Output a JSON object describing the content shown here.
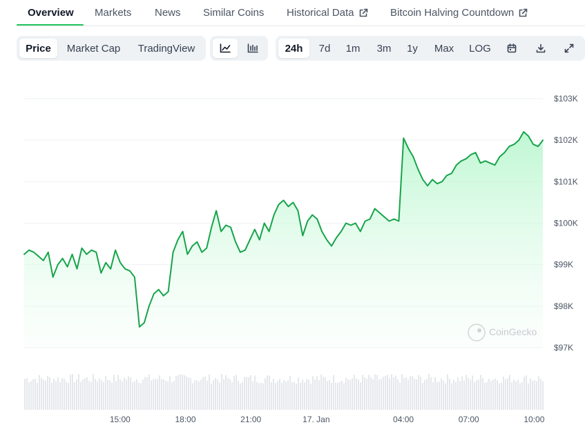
{
  "tabs": [
    {
      "label": "Overview",
      "active": true
    },
    {
      "label": "Markets"
    },
    {
      "label": "News"
    },
    {
      "label": "Similar Coins"
    },
    {
      "label": "Historical Data",
      "external": true
    },
    {
      "label": "Bitcoin Halving Countdown",
      "external": true
    }
  ],
  "toolbar": {
    "chart_type": [
      "Price",
      "Market Cap",
      "TradingView"
    ],
    "chart_type_selected": "Price",
    "view_icons": [
      "line-chart-icon",
      "candlestick-chart-icon"
    ],
    "ranges": [
      "24h",
      "7d",
      "1m",
      "3m",
      "1y",
      "Max",
      "LOG"
    ],
    "range_selected": "24h",
    "action_icons": [
      "calendar-icon",
      "download-icon",
      "fullscreen-icon"
    ]
  },
  "watermark": "CoinGecko",
  "colors": {
    "line": "#16a34a",
    "fill_top": "#bbf7d0",
    "volume": "#e5e7eb",
    "accent": "#22c55e"
  },
  "chart_data": {
    "type": "area",
    "y_ticks": [
      "$103K",
      "$102K",
      "$101K",
      "$100K",
      "$99K",
      "$98K",
      "$97K"
    ],
    "ylim": [
      96900,
      103100
    ],
    "x_ticks": [
      "15:00",
      "18:00",
      "21:00",
      "17. Jan",
      "04:00",
      "07:00",
      "10:00"
    ],
    "x_tick_hours": [
      15,
      18,
      21,
      24,
      28,
      31,
      34
    ],
    "x_start_hour": 10.6,
    "x_end_hour": 34.4,
    "price": [
      99250,
      99350,
      99300,
      99200,
      99100,
      99300,
      98700,
      99000,
      99150,
      98950,
      99250,
      98900,
      99400,
      99250,
      99350,
      99300,
      98800,
      99050,
      98900,
      99350,
      99050,
      98900,
      98850,
      98700,
      97500,
      97600,
      98000,
      98300,
      98400,
      98250,
      98350,
      99300,
      99600,
      99800,
      99250,
      99450,
      99550,
      99300,
      99400,
      99900,
      100300,
      99800,
      99950,
      99900,
      99550,
      99300,
      99350,
      99600,
      99850,
      99600,
      100000,
      99800,
      100200,
      100450,
      100550,
      100400,
      100500,
      100300,
      99700,
      100050,
      100200,
      100100,
      99800,
      99600,
      99450,
      99650,
      99800,
      100000,
      99950,
      100000,
      99800,
      100050,
      100100,
      100350,
      100250,
      100150,
      100050,
      100100,
      100050,
      102050,
      101800,
      101600,
      101300,
      101050,
      100900,
      101050,
      100950,
      101000,
      101150,
      101200,
      101400,
      101500,
      101550,
      101650,
      101700,
      101450,
      101500,
      101450,
      101400,
      101600,
      101700,
      101850,
      101900,
      102000,
      102200,
      102100,
      101900,
      101850,
      102000
    ]
  }
}
